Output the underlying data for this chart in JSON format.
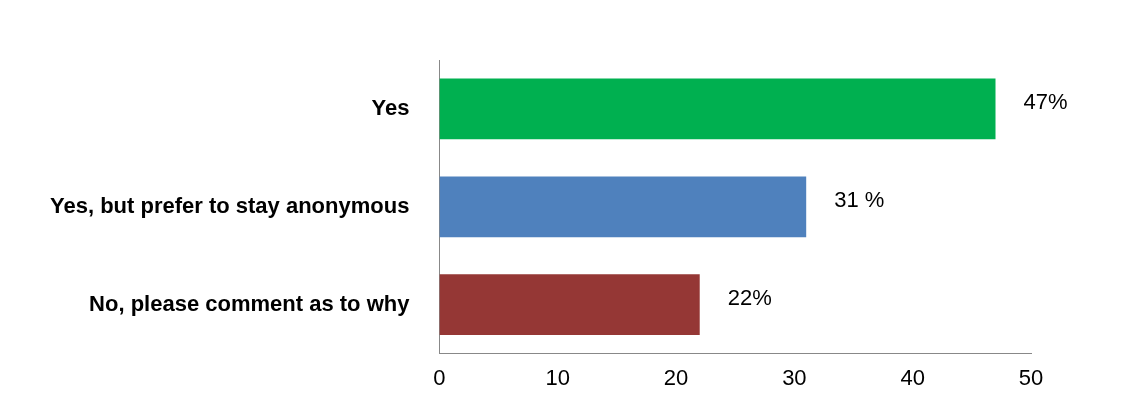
{
  "chart_data": {
    "type": "bar",
    "orientation": "horizontal",
    "categories": [
      "Yes",
      "Yes, but prefer to stay anonymous",
      "No, please comment as to why"
    ],
    "values": [
      47,
      31,
      22
    ],
    "colors": [
      "#00b050",
      "#4f81bd",
      "#953735"
    ],
    "value_labels": [
      "47%",
      "31 %",
      "22%"
    ],
    "xlim": [
      0,
      50
    ],
    "xticks": [
      0,
      10,
      20,
      30,
      40,
      50
    ],
    "grid": false,
    "legend": false
  }
}
